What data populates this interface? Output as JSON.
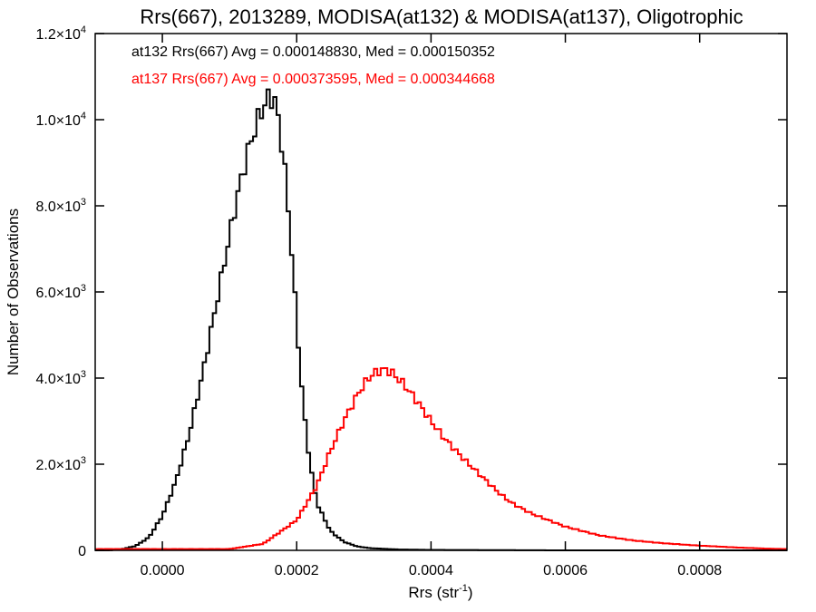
{
  "chart_data": {
    "type": "histogram",
    "title": "Rrs(667), 2013289, MODISA(at132) & MODISA(at137), Oligotrophic",
    "xlabel": "Rrs (str",
    "xlabel_sup": "-1",
    "xlabel_end": ")",
    "ylabel": "Number of Observations",
    "xlim": [
      -0.0001,
      0.00093
    ],
    "ylim": [
      0,
      12000
    ],
    "x_ticks": [
      {
        "value": 0.0,
        "label": "0.0000"
      },
      {
        "value": 0.0002,
        "label": "0.0002"
      },
      {
        "value": 0.0004,
        "label": "0.0004"
      },
      {
        "value": 0.0006,
        "label": "0.0006"
      },
      {
        "value": 0.0008,
        "label": "0.0008"
      }
    ],
    "y_ticks": [
      {
        "value": 0,
        "mant": "0",
        "exp": ""
      },
      {
        "value": 2000,
        "mant": "2.0×10",
        "exp": "3"
      },
      {
        "value": 4000,
        "mant": "4.0×10",
        "exp": "3"
      },
      {
        "value": 6000,
        "mant": "6.0×10",
        "exp": "3"
      },
      {
        "value": 8000,
        "mant": "8.0×10",
        "exp": "3"
      },
      {
        "value": 10000,
        "mant": "1.0×10",
        "exp": "4"
      },
      {
        "value": 12000,
        "mant": "1.2×10",
        "exp": "4"
      }
    ],
    "bin_width": 5e-06,
    "series": [
      {
        "name": "at132",
        "color": "#000000",
        "x": [
          -8e-05,
          -6e-05,
          -4e-05,
          -2e-05,
          0.0,
          2e-05,
          4e-05,
          6e-05,
          8e-05,
          0.0001,
          0.00011,
          0.00012,
          0.00013,
          0.00014,
          0.00015,
          0.00016,
          0.000165,
          0.00017,
          0.00018,
          0.00019,
          0.0002,
          0.00021,
          0.00022,
          0.00023,
          0.00025,
          0.00027,
          0.00029,
          0.00031,
          0.00035,
          0.0004,
          0.0005,
          0.0006,
          0.0007,
          0.0008,
          0.0009
        ],
        "y": [
          0,
          30,
          100,
          300,
          800,
          1600,
          2700,
          4100,
          5700,
          7300,
          8100,
          8800,
          9400,
          9900,
          10300,
          10550,
          10500,
          10300,
          9200,
          7500,
          5300,
          3300,
          2000,
          1100,
          450,
          200,
          90,
          50,
          20,
          10,
          5,
          0,
          0,
          0,
          0
        ]
      },
      {
        "name": "at137",
        "color": "#ff0000",
        "x": [
          0.0001,
          0.00015,
          0.0002,
          0.00023,
          0.00025,
          0.00027,
          0.00029,
          0.0003,
          0.00031,
          0.00032,
          0.00033,
          0.00034,
          0.00036,
          0.00038,
          0.0004,
          0.00042,
          0.00045,
          0.00048,
          0.0005,
          0.00052,
          0.00055,
          0.0006,
          0.00065,
          0.0007,
          0.00075,
          0.0008,
          0.00085,
          0.0009,
          0.00093
        ],
        "y": [
          30,
          150,
          700,
          1500,
          2300,
          3000,
          3600,
          3850,
          4050,
          4150,
          4200,
          4150,
          3850,
          3450,
          3000,
          2600,
          2100,
          1650,
          1350,
          1100,
          850,
          550,
          350,
          230,
          160,
          110,
          70,
          40,
          30
        ]
      }
    ],
    "annotations": [
      {
        "text": "at132 Rrs(667) Avg = 0.000148830, Med = 0.000150352",
        "color": "#000000"
      },
      {
        "text": "at137 Rrs(667) Avg = 0.000373595, Med = 0.000344668",
        "color": "#ff0000"
      }
    ]
  }
}
